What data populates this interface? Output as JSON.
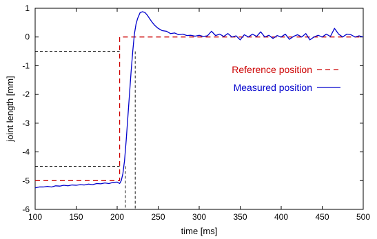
{
  "chart_data": {
    "type": "line",
    "title": "",
    "xlabel": "time [ms]",
    "ylabel": "joint length [mm]",
    "xlim": [
      100,
      500
    ],
    "ylim": [
      -6,
      1
    ],
    "x_ticks": [
      100,
      150,
      200,
      250,
      300,
      350,
      400,
      450,
      500
    ],
    "y_ticks": [
      -6,
      -5,
      -4,
      -3,
      -2,
      -1,
      0,
      1
    ],
    "grid": false,
    "legend_position": "right",
    "series": [
      {
        "name": "Reference position",
        "color": "#cc0000",
        "style": "dashed",
        "x": [
          100,
          203,
          203,
          500
        ],
        "y": [
          -5,
          -5,
          0,
          0
        ]
      },
      {
        "name": "Measured position",
        "color": "#0000cc",
        "style": "solid",
        "x": [
          100,
          105,
          110,
          115,
          120,
          125,
          130,
          135,
          140,
          145,
          150,
          155,
          160,
          165,
          170,
          175,
          180,
          185,
          190,
          195,
          200,
          203,
          205,
          207,
          209,
          211,
          213,
          215,
          217,
          219,
          221,
          223,
          225,
          228,
          231,
          234,
          237,
          240,
          243,
          246,
          250,
          255,
          260,
          265,
          270,
          275,
          280,
          285,
          290,
          295,
          300,
          305,
          310,
          315,
          320,
          325,
          330,
          335,
          340,
          345,
          350,
          355,
          360,
          365,
          370,
          375,
          380,
          385,
          390,
          395,
          400,
          405,
          410,
          415,
          420,
          425,
          430,
          435,
          440,
          445,
          450,
          455,
          460,
          465,
          470,
          475,
          480,
          485,
          490,
          495,
          500
        ],
        "y": [
          -5.25,
          -5.22,
          -5.22,
          -5.2,
          -5.22,
          -5.18,
          -5.19,
          -5.16,
          -5.18,
          -5.15,
          -5.16,
          -5.14,
          -5.15,
          -5.12,
          -5.14,
          -5.1,
          -5.11,
          -5.08,
          -5.1,
          -5.06,
          -5.05,
          -5.1,
          -5.0,
          -4.75,
          -4.3,
          -3.6,
          -2.8,
          -2.0,
          -1.2,
          -0.5,
          0.1,
          0.45,
          0.65,
          0.85,
          0.88,
          0.85,
          0.75,
          0.62,
          0.5,
          0.4,
          0.3,
          0.22,
          0.2,
          0.12,
          0.14,
          0.08,
          0.1,
          0.05,
          0.06,
          0.03,
          0.06,
          0.02,
          0.04,
          0.2,
          0.05,
          0.1,
          0.02,
          0.12,
          0.0,
          0.04,
          -0.1,
          0.08,
          0.0,
          0.1,
          0.02,
          0.18,
          0.0,
          0.06,
          -0.05,
          0.05,
          0.0,
          0.1,
          -0.08,
          0.02,
          0.08,
          0.0,
          0.12,
          -0.1,
          0.0,
          0.06,
          0.0,
          0.1,
          0.02,
          0.3,
          0.1,
          0.0,
          0.1,
          0.08,
          0.0,
          0.04,
          0.0
        ]
      }
    ],
    "markers": [
      {
        "x_end": 203,
        "y": -0.5,
        "x_drop": 222
      },
      {
        "x_end": 203,
        "y": -4.5,
        "x_drop": 210
      }
    ]
  }
}
